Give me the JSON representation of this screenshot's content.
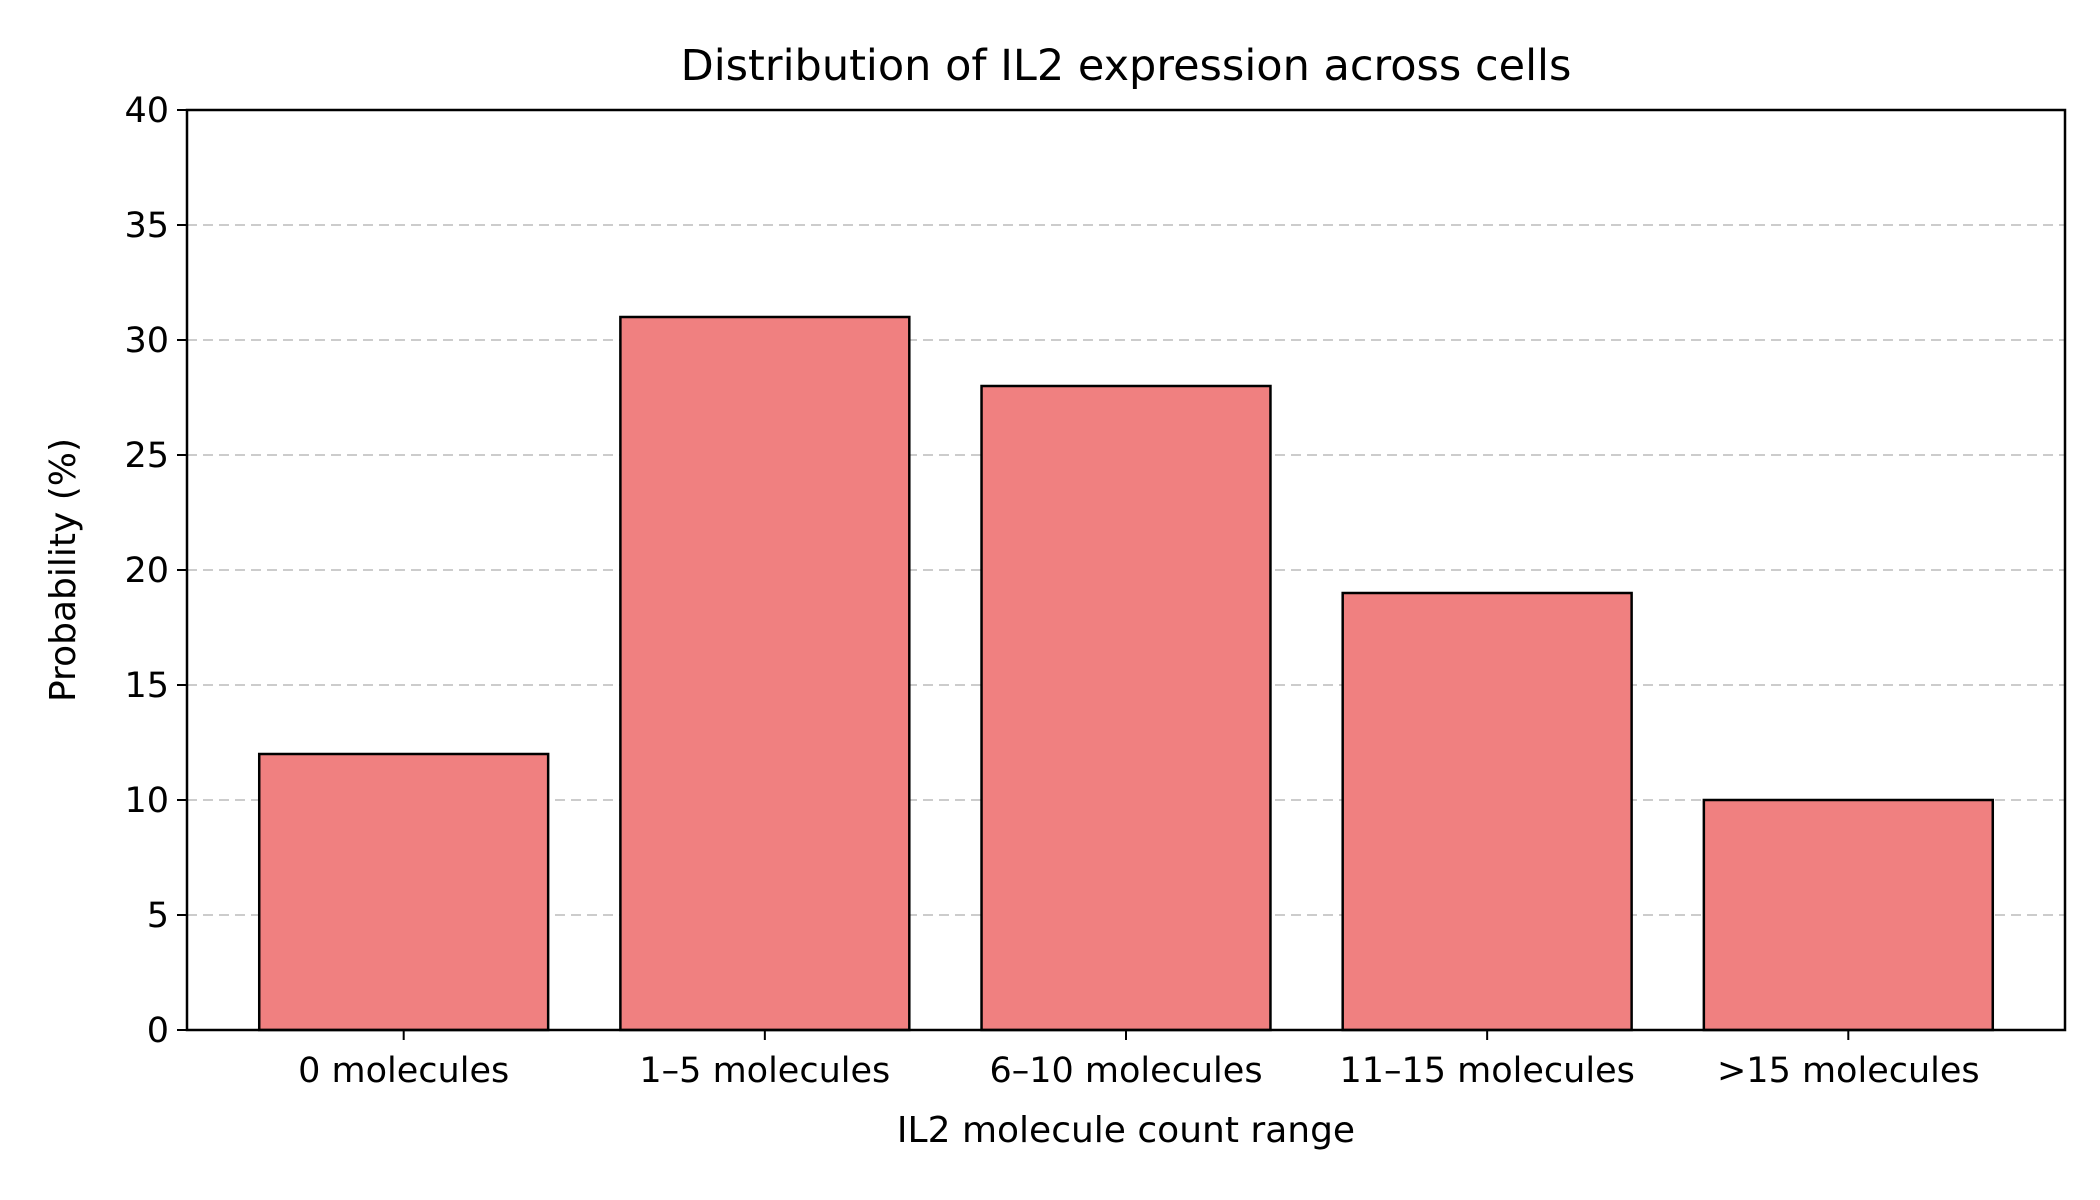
{
  "chart_data": {
    "type": "bar",
    "title": "Distribution of IL2 expression across cells",
    "xlabel": "IL2 molecule count range",
    "ylabel": "Probability (%)",
    "categories": [
      "0 molecules",
      "1–5 molecules",
      "6–10 molecules",
      "11–15 molecules",
      ">15 molecules"
    ],
    "values": [
      12,
      31,
      28,
      19,
      10
    ],
    "ylim": [
      0,
      40
    ],
    "yticks": [
      0,
      5,
      10,
      15,
      20,
      25,
      30,
      35,
      40
    ],
    "grid": "y-dashed",
    "bar_color": "#f08080",
    "edge_color": "#000000",
    "grid_color": "#cccccc"
  }
}
